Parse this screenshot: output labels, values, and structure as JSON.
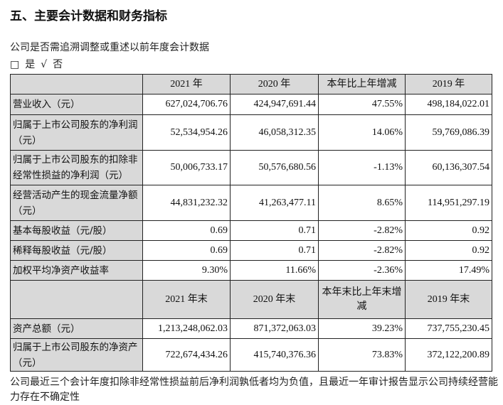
{
  "title": "五、主要会计数据和财务指标",
  "question": "公司是否需追溯调整或重述以前年度会计数据",
  "options": {
    "box": "□",
    "yes": "是",
    "check": "√",
    "no": "否"
  },
  "table1": {
    "headers": [
      "",
      "2021 年",
      "2020 年",
      "本年比上年增减",
      "2019 年"
    ],
    "rows": [
      {
        "label": "营业收入（元）",
        "values": [
          "627,024,706.76",
          "424,947,691.44",
          "47.55%",
          "498,184,022.01"
        ]
      },
      {
        "label": "归属于上市公司股东的净利润（元）",
        "values": [
          "52,534,954.26",
          "46,058,312.35",
          "14.06%",
          "59,769,086.39"
        ]
      },
      {
        "label": "归属于上市公司股东的扣除非经常性损益的净利润（元）",
        "values": [
          "50,006,733.17",
          "50,576,680.56",
          "-1.13%",
          "60,136,307.54"
        ]
      },
      {
        "label": "经营活动产生的现金流量净额（元）",
        "values": [
          "44,831,232.32",
          "41,263,477.11",
          "8.65%",
          "114,951,297.19"
        ]
      },
      {
        "label": "基本每股收益（元/股）",
        "values": [
          "0.69",
          "0.71",
          "-2.82%",
          "0.92"
        ]
      },
      {
        "label": "稀释每股收益（元/股）",
        "values": [
          "0.69",
          "0.71",
          "-2.82%",
          "0.92"
        ]
      },
      {
        "label": "加权平均净资产收益率",
        "values": [
          "9.30%",
          "11.66%",
          "-2.36%",
          "17.49%"
        ]
      }
    ]
  },
  "table2": {
    "headers": [
      "",
      "2021 年末",
      "2020 年末",
      "本年末比上年末增减",
      "2019 年末"
    ],
    "rows": [
      {
        "label": "资产总额（元）",
        "values": [
          "1,213,248,062.03",
          "871,372,063.03",
          "39.23%",
          "737,755,230.45"
        ]
      },
      {
        "label": "归属于上市公司股东的净资产（元）",
        "values": [
          "722,674,434.26",
          "415,740,376.36",
          "73.83%",
          "372,122,200.89"
        ]
      }
    ]
  },
  "footnote": "公司最近三个会计年度扣除非经常性损益前后净利润孰低者均为负值，且最近一年审计报告显示公司持续经营能力存在不确定性"
}
